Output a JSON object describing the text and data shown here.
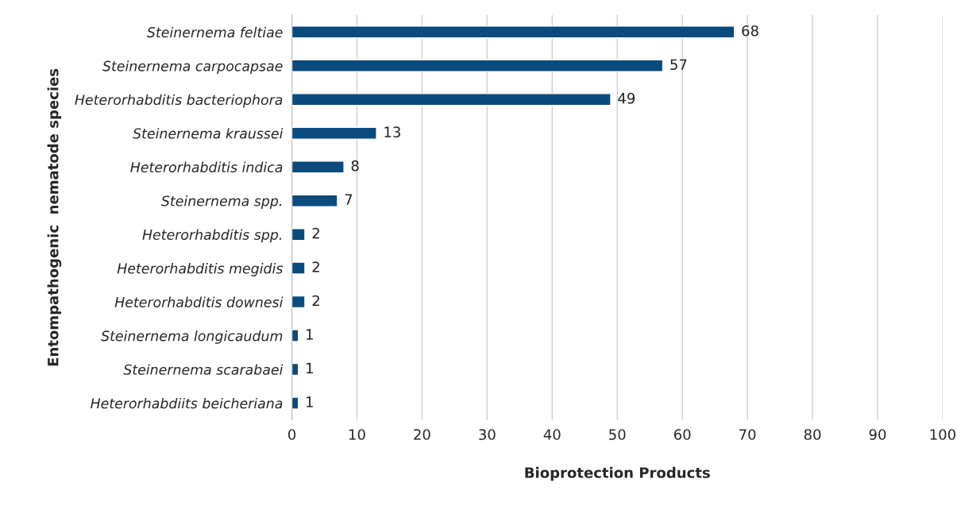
{
  "chart_data": {
    "type": "bar",
    "orientation": "horizontal",
    "xlabel": "Bioprotection Products",
    "ylabel": "Entompathogenic  nematode species",
    "categories": [
      "Steinernema feltiae",
      "Steinernema carpocapsae",
      "Heterorhabditis bacteriophora",
      "Steinernema kraussei",
      "Heterorhabditis indica",
      "Steinernema spp.",
      "Heterorhabditis spp.",
      "Heterorhabditis megidis",
      "Heterorhabditis downesi",
      "Steinernema longicaudum",
      "Steinernema scarabaei",
      "Heterorhabdiits beicheriana"
    ],
    "values": [
      68,
      57,
      49,
      13,
      8,
      7,
      2,
      2,
      2,
      1,
      1,
      1
    ],
    "color": "#0b4a7c",
    "xlim": [
      0,
      100
    ],
    "xticks": [
      0,
      10,
      20,
      30,
      40,
      50,
      60,
      70,
      80,
      90,
      100
    ],
    "grid": "x",
    "data_labels": true,
    "legend": false
  }
}
